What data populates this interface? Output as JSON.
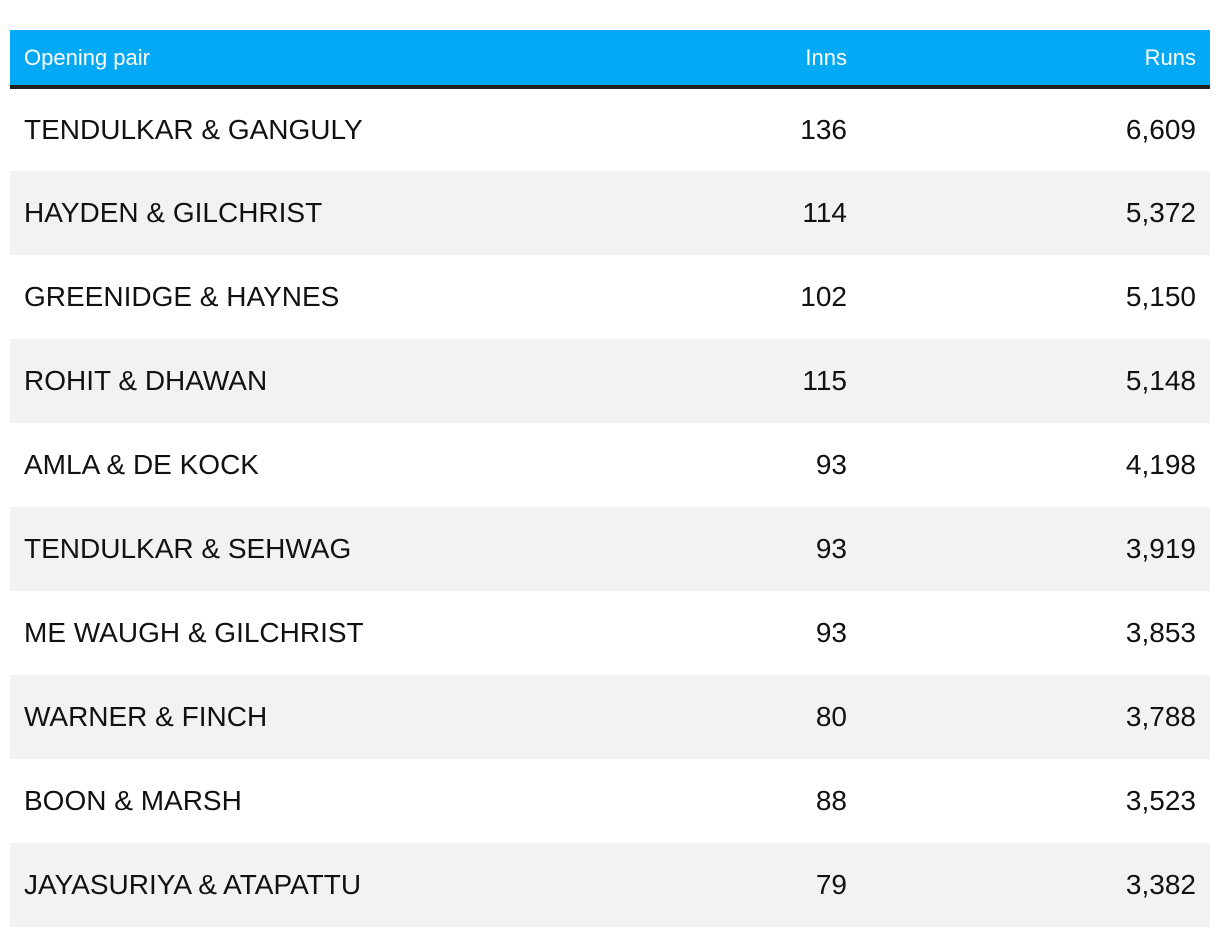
{
  "table": {
    "headers": {
      "pair": "Opening pair",
      "inns": "Inns",
      "runs": "Runs"
    },
    "rows": [
      {
        "pair": "TENDULKAR & GANGULY",
        "inns": "136",
        "runs": "6,609"
      },
      {
        "pair": "HAYDEN & GILCHRIST",
        "inns": "114",
        "runs": "5,372"
      },
      {
        "pair": "GREENIDGE & HAYNES",
        "inns": "102",
        "runs": "5,150"
      },
      {
        "pair": "ROHIT & DHAWAN",
        "inns": "115",
        "runs": "5,148"
      },
      {
        "pair": "AMLA & DE KOCK",
        "inns": "93",
        "runs": "4,198"
      },
      {
        "pair": "TENDULKAR & SEHWAG",
        "inns": "93",
        "runs": "3,919"
      },
      {
        "pair": "ME WAUGH & GILCHRIST",
        "inns": "93",
        "runs": "3,853"
      },
      {
        "pair": "WARNER & FINCH",
        "inns": "80",
        "runs": "3,788"
      },
      {
        "pair": "BOON & MARSH",
        "inns": "88",
        "runs": "3,523"
      },
      {
        "pair": "JAYASURIYA & ATAPATTU",
        "inns": "79",
        "runs": "3,382"
      }
    ]
  },
  "colors": {
    "header_background": "#03a9f4",
    "header_text": "#ffffff",
    "stripe": "#f2f2f2"
  }
}
